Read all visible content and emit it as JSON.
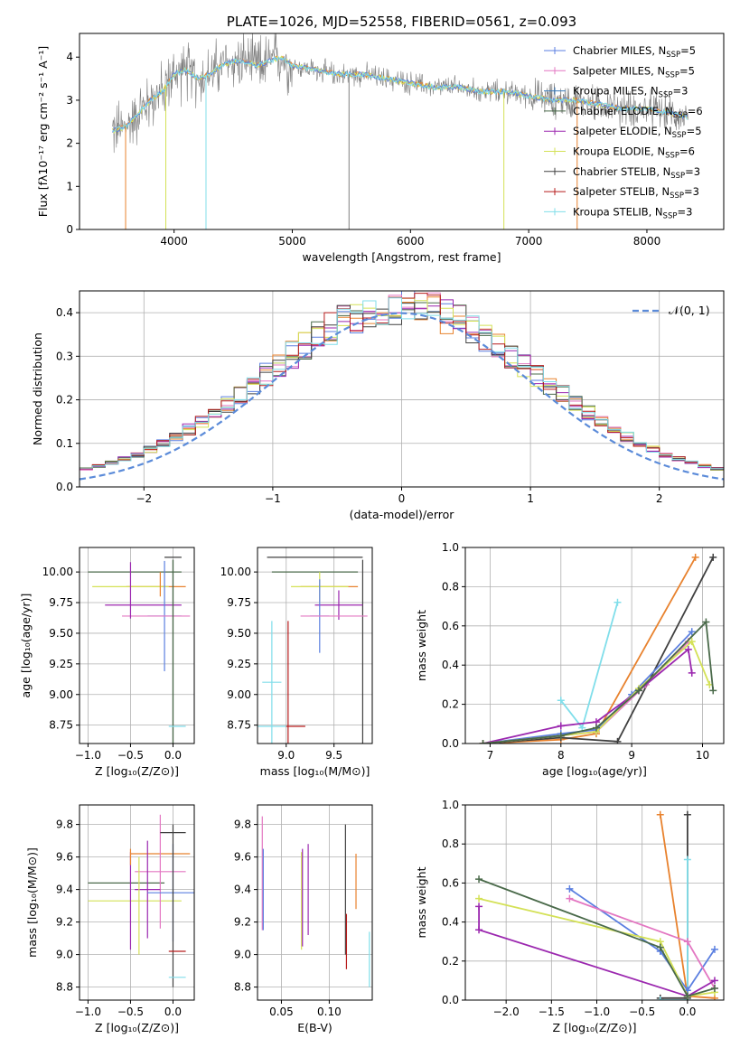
{
  "chart_data": [
    {
      "id": "spectrum",
      "type": "line",
      "title": "PLATE=1026, MJD=52558, FIBERID=0561, z=0.093",
      "xlabel": "wavelength [Angstrom, rest frame]",
      "ylabel": "Flux [fλ10⁻¹⁷ erg cm⁻² s⁻¹ A⁻¹]",
      "xlim": [
        3200,
        8650
      ],
      "ylim": [
        0,
        4.55
      ],
      "xticks": [
        4000,
        5000,
        6000,
        7000,
        8000
      ],
      "yticks": [
        0,
        1,
        2,
        3,
        4
      ],
      "grid": false,
      "legend_position": "top-right",
      "legend": [
        {
          "name": "Chabrier MILES, N_SSP=5",
          "color": "#5b7fe0"
        },
        {
          "name": "Salpeter MILES, N_SSP=5",
          "color": "#e377c2"
        },
        {
          "name": "Kroupa MILES, N_SSP=3",
          "color": "#3a7ab8"
        },
        {
          "name": "Chabrier ELODIE, N_SSP=6",
          "color": "#4a6a4a"
        },
        {
          "name": "Salpeter ELODIE, N_SSP=5",
          "color": "#9b27af"
        },
        {
          "name": "Kroupa ELODIE, N_SSP=6",
          "color": "#d4e157"
        },
        {
          "name": "Chabrier STELIB, N_SSP=3",
          "color": "#404040"
        },
        {
          "name": "Salpeter STELIB, N_SSP=3",
          "color": "#b71c1c"
        },
        {
          "name": "Kroupa STELIB, N_SSP=3",
          "color": "#80deea"
        }
      ],
      "data_color": "#808080",
      "model_color": "#80deea",
      "model_x": [
        3500,
        3600,
        3700,
        3800,
        3900,
        4000,
        4100,
        4200,
        4300,
        4400,
        4500,
        4600,
        4700,
        4800,
        4900,
        5000,
        5200,
        5400,
        5600,
        5800,
        6000,
        6200,
        6400,
        6600,
        6800,
        7000,
        7200,
        7400,
        7600,
        7800,
        8000,
        8200,
        8350
      ],
      "model_y": [
        2.3,
        2.4,
        2.7,
        3.0,
        3.2,
        3.6,
        3.7,
        3.5,
        3.6,
        3.8,
        3.9,
        3.9,
        3.8,
        3.9,
        4.0,
        3.8,
        3.7,
        3.6,
        3.6,
        3.5,
        3.4,
        3.3,
        3.3,
        3.2,
        3.2,
        3.1,
        3.0,
        3.0,
        2.9,
        2.8,
        2.8,
        2.7,
        2.6
      ]
    },
    {
      "id": "residual-hist",
      "type": "line",
      "xlabel": "(data-model)/error",
      "ylabel": "Normed distribution",
      "xlim": [
        -2.5,
        2.5
      ],
      "ylim": [
        0,
        0.45
      ],
      "xticks": [
        -2,
        -1,
        0,
        1,
        2
      ],
      "yticks": [
        0.0,
        0.1,
        0.2,
        0.3,
        0.4
      ],
      "grid": true,
      "legend_position": "top-right",
      "gaussian_label": "𝒩(0, 1)",
      "gaussian_color": "#5b8bd9",
      "hist_colors": [
        "#5b7fe0",
        "#e377c2",
        "#e8822e",
        "#4a6a4a",
        "#9b27af",
        "#d4e157",
        "#404040",
        "#b71c1c",
        "#80deea"
      ]
    },
    {
      "id": "age-vs-Z",
      "type": "scatter",
      "xlabel": "Z [log₁₀(Z/Z⊙)]",
      "ylabel": "age  [log₁₀(age/yr)]",
      "xlim": [
        -1.1,
        0.25
      ],
      "ylim": [
        8.6,
        10.2
      ],
      "xticks": [
        -1.0,
        -0.5,
        0.0
      ],
      "yticks": [
        8.75,
        9.0,
        9.25,
        9.5,
        9.75,
        10.0
      ],
      "grid": true
    },
    {
      "id": "age-vs-mass",
      "type": "scatter",
      "xlabel": "mass [log₁₀(M/M⊙)]",
      "ylabel": "",
      "xlim": [
        8.7,
        9.9
      ],
      "ylim": [
        8.6,
        10.2
      ],
      "xticks": [
        9.0,
        9.5
      ],
      "yticks": [
        8.75,
        9.0,
        9.25,
        9.5,
        9.75,
        10.0
      ],
      "grid": true
    },
    {
      "id": "massweight-vs-age",
      "type": "line",
      "xlabel": "age  [log₁₀(age/yr)]",
      "ylabel": "mass weight",
      "xlim": [
        6.65,
        10.3
      ],
      "ylim": [
        0,
        1.0
      ],
      "xticks": [
        7,
        8,
        9,
        10
      ],
      "yticks": [
        0.0,
        0.2,
        0.4,
        0.6,
        0.8,
        1.0
      ],
      "grid": true,
      "series": [
        {
          "color": "#e8822e",
          "x": [
            6.9,
            8.0,
            8.5,
            9.9
          ],
          "y": [
            0.0,
            0.02,
            0.05,
            0.95
          ]
        },
        {
          "color": "#404040",
          "x": [
            6.9,
            8.0,
            8.8,
            10.15
          ],
          "y": [
            0.0,
            0.03,
            0.01,
            0.95
          ]
        },
        {
          "color": "#80deea",
          "x": [
            8.0,
            8.3,
            8.8
          ],
          "y": [
            0.22,
            0.08,
            0.72
          ]
        },
        {
          "color": "#5b7fe0",
          "x": [
            6.9,
            8.0,
            8.5,
            9.0,
            9.85
          ],
          "y": [
            0.0,
            0.05,
            0.07,
            0.25,
            0.57
          ]
        },
        {
          "color": "#e377c2",
          "x": [
            6.9,
            8.0,
            8.5,
            9.2,
            9.8
          ],
          "y": [
            0.0,
            0.04,
            0.06,
            0.3,
            0.52
          ]
        },
        {
          "color": "#9b27af",
          "x": [
            6.9,
            8.0,
            8.5,
            9.1,
            9.8,
            9.85
          ],
          "y": [
            0.0,
            0.09,
            0.11,
            0.27,
            0.48,
            0.36
          ]
        },
        {
          "color": "#d4e157",
          "x": [
            6.9,
            8.0,
            8.5,
            9.1,
            9.85,
            10.1
          ],
          "y": [
            0.0,
            0.04,
            0.06,
            0.28,
            0.52,
            0.3
          ]
        },
        {
          "color": "#4a6a4a",
          "x": [
            6.9,
            8.0,
            8.5,
            9.1,
            10.05,
            10.15
          ],
          "y": [
            0.0,
            0.04,
            0.08,
            0.27,
            0.62,
            0.27
          ]
        }
      ]
    },
    {
      "id": "mass-vs-Z",
      "type": "scatter",
      "xlabel": "Z [log₁₀(Z/Z⊙)]",
      "ylabel": "mass [log₁₀(M/M⊙)]",
      "xlim": [
        -1.1,
        0.25
      ],
      "ylim": [
        8.72,
        9.92
      ],
      "xticks": [
        -1.0,
        -0.5,
        0.0
      ],
      "yticks": [
        8.8,
        9.0,
        9.2,
        9.4,
        9.6,
        9.8
      ],
      "grid": true
    },
    {
      "id": "mass-vs-ebv",
      "type": "scatter",
      "xlabel": "E(B-V)",
      "ylabel": "",
      "xlim": [
        0.025,
        0.145
      ],
      "ylim": [
        8.72,
        9.92
      ],
      "xticks": [
        0.05,
        0.1
      ],
      "yticks": [
        8.8,
        9.0,
        9.2,
        9.4,
        9.6,
        9.8
      ],
      "grid": true
    },
    {
      "id": "massweight-vs-Z",
      "type": "line",
      "xlabel": "Z [log₁₀(Z/Z⊙)]",
      "ylabel": "mass weight",
      "xlim": [
        -2.45,
        0.4
      ],
      "ylim": [
        0,
        1.0
      ],
      "xticks": [
        -2.0,
        -1.5,
        -1.0,
        -0.5,
        0.0
      ],
      "yticks": [
        0.0,
        0.2,
        0.4,
        0.6,
        0.8,
        1.0
      ],
      "grid": true,
      "series": [
        {
          "color": "#e8822e",
          "x": [
            -0.3,
            0.0,
            0.3
          ],
          "y": [
            0.95,
            0.02,
            0.01
          ]
        },
        {
          "color": "#404040",
          "x": [
            0.0,
            0.0,
            -0.3
          ],
          "y": [
            0.95,
            0.01,
            0.01
          ]
        },
        {
          "color": "#80deea",
          "x": [
            0.0,
            0.0,
            -0.3
          ],
          "y": [
            0.72,
            0.0,
            0.0
          ]
        },
        {
          "color": "#5b7fe0",
          "x": [
            -1.3,
            -0.3,
            0.0,
            0.3
          ],
          "y": [
            0.57,
            0.25,
            0.05,
            0.26
          ]
        },
        {
          "color": "#e377c2",
          "x": [
            -1.3,
            0.0,
            0.3
          ],
          "y": [
            0.52,
            0.3,
            0.06
          ]
        },
        {
          "color": "#9b27af",
          "x": [
            -2.3,
            -2.3,
            0.0,
            0.3
          ],
          "y": [
            0.48,
            0.36,
            0.02,
            0.1
          ]
        },
        {
          "color": "#d4e157",
          "x": [
            -2.3,
            -0.3,
            0.0,
            0.3
          ],
          "y": [
            0.52,
            0.3,
            0.02,
            0.04
          ]
        },
        {
          "color": "#4a6a4a",
          "x": [
            -2.3,
            -0.3,
            0.0,
            0.3
          ],
          "y": [
            0.62,
            0.27,
            0.02,
            0.06
          ]
        }
      ]
    }
  ]
}
